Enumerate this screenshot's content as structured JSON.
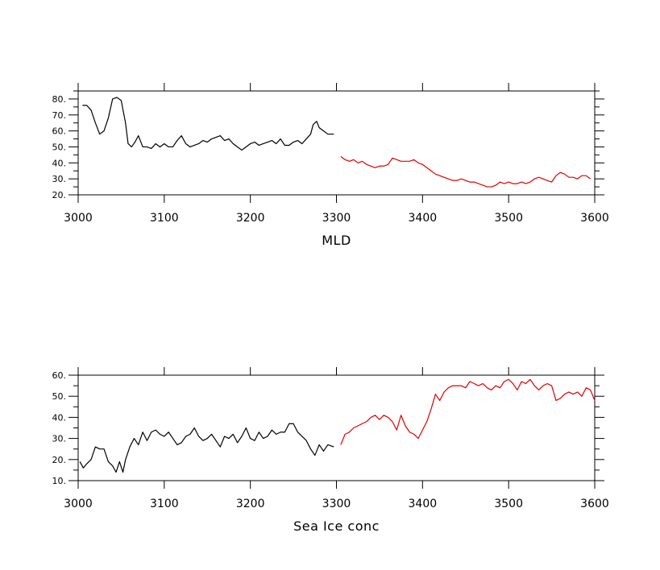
{
  "chart_data": [
    {
      "type": "line",
      "title": "",
      "xlabel": "MLD",
      "ylabel": "",
      "xlim": [
        3000,
        3600
      ],
      "ylim": [
        20,
        85
      ],
      "x_ticks": [
        3000,
        3100,
        3200,
        3300,
        3400,
        3500,
        3600
      ],
      "x_tick_labels": [
        "3000",
        "3100",
        "3200",
        "3300",
        "3400",
        "3500",
        "3600"
      ],
      "y_ticks": [
        20,
        30,
        40,
        50,
        60,
        70,
        80
      ],
      "y_tick_labels": [
        "20.",
        "30.",
        "40.",
        "50.",
        "60.",
        "70.",
        "80."
      ],
      "grid": false,
      "series": [
        {
          "color": "#000000",
          "x": [
            3005,
            3010,
            3015,
            3020,
            3025,
            3030,
            3035,
            3040,
            3045,
            3050,
            3055,
            3058,
            3062,
            3066,
            3070,
            3075,
            3080,
            3085,
            3090,
            3095,
            3100,
            3105,
            3110,
            3115,
            3120,
            3125,
            3130,
            3135,
            3140,
            3145,
            3150,
            3155,
            3160,
            3165,
            3170,
            3175,
            3180,
            3185,
            3190,
            3195,
            3200,
            3205,
            3210,
            3215,
            3220,
            3225,
            3230,
            3235,
            3240,
            3245,
            3250,
            3255,
            3260,
            3265,
            3270,
            3273,
            3277,
            3280,
            3285,
            3290,
            3297
          ],
          "y": [
            76,
            76,
            73,
            65,
            58,
            60,
            68,
            80,
            81,
            79,
            65,
            52,
            50,
            53,
            57,
            50,
            50,
            49,
            52,
            50,
            52,
            50,
            50,
            54,
            57,
            52,
            50,
            51,
            52,
            54,
            53,
            55,
            56,
            57,
            54,
            55,
            52,
            50,
            48,
            50,
            52,
            53,
            51,
            52,
            53,
            54,
            52,
            55,
            51,
            51,
            53,
            54,
            52,
            55,
            58,
            64,
            66,
            62,
            60,
            58,
            58
          ]
        },
        {
          "color": "#e00000",
          "x": [
            3305,
            3310,
            3315,
            3320,
            3325,
            3330,
            3335,
            3340,
            3345,
            3350,
            3355,
            3360,
            3365,
            3370,
            3375,
            3380,
            3385,
            3390,
            3395,
            3400,
            3405,
            3410,
            3415,
            3420,
            3425,
            3430,
            3435,
            3440,
            3445,
            3450,
            3455,
            3460,
            3465,
            3470,
            3475,
            3480,
            3485,
            3490,
            3495,
            3500,
            3505,
            3510,
            3515,
            3520,
            3525,
            3530,
            3535,
            3540,
            3545,
            3550,
            3555,
            3560,
            3565,
            3570,
            3575,
            3580,
            3585,
            3590,
            3595
          ],
          "y": [
            44,
            42,
            41,
            42,
            40,
            41,
            39,
            38,
            37,
            38,
            38,
            39,
            43,
            42,
            41,
            41,
            41,
            42,
            40,
            39,
            37,
            35,
            33,
            32,
            31,
            30,
            29,
            29,
            30,
            29,
            28,
            28,
            27,
            26,
            25,
            25,
            26,
            28,
            27,
            28,
            27,
            27,
            28,
            27,
            28,
            30,
            31,
            30,
            29,
            28,
            32,
            34,
            33,
            31,
            31,
            30,
            32,
            32,
            30
          ]
        }
      ]
    },
    {
      "type": "line",
      "title": "",
      "xlabel": "Sea Ice conc",
      "ylabel": "",
      "xlim": [
        3000,
        3600
      ],
      "ylim": [
        10,
        60
      ],
      "x_ticks": [
        3000,
        3100,
        3200,
        3300,
        3400,
        3500,
        3600
      ],
      "x_tick_labels": [
        "3000",
        "3100",
        "3200",
        "3300",
        "3400",
        "3500",
        "3600"
      ],
      "y_ticks": [
        10,
        20,
        30,
        40,
        50,
        60
      ],
      "y_tick_labels": [
        "10.",
        "20.",
        "30.",
        "40.",
        "50.",
        "60."
      ],
      "grid": false,
      "series": [
        {
          "color": "#000000",
          "x": [
            3002,
            3006,
            3010,
            3015,
            3020,
            3025,
            3030,
            3035,
            3040,
            3044,
            3048,
            3052,
            3055,
            3060,
            3065,
            3070,
            3075,
            3080,
            3085,
            3090,
            3095,
            3100,
            3105,
            3110,
            3115,
            3120,
            3125,
            3130,
            3135,
            3140,
            3145,
            3150,
            3155,
            3160,
            3165,
            3170,
            3175,
            3180,
            3185,
            3190,
            3195,
            3200,
            3205,
            3210,
            3215,
            3220,
            3225,
            3230,
            3235,
            3240,
            3245,
            3250,
            3255,
            3260,
            3265,
            3270,
            3275,
            3280,
            3285,
            3290,
            3297
          ],
          "y": [
            19,
            16,
            18,
            20,
            26,
            25,
            25,
            19,
            17,
            14,
            19,
            14,
            20,
            26,
            30,
            27,
            33,
            29,
            33,
            34,
            32,
            31,
            33,
            30,
            27,
            28,
            31,
            32,
            35,
            31,
            29,
            30,
            32,
            29,
            26,
            31,
            30,
            32,
            28,
            31,
            35,
            30,
            29,
            33,
            30,
            31,
            34,
            32,
            33,
            33,
            37,
            37,
            33,
            31,
            29,
            25,
            22,
            27,
            24,
            27,
            26
          ]
        },
        {
          "color": "#e00000",
          "x": [
            3305,
            3310,
            3315,
            3320,
            3325,
            3330,
            3335,
            3340,
            3345,
            3350,
            3355,
            3360,
            3365,
            3370,
            3375,
            3380,
            3385,
            3390,
            3395,
            3400,
            3405,
            3410,
            3415,
            3420,
            3425,
            3430,
            3435,
            3440,
            3445,
            3450,
            3455,
            3460,
            3465,
            3470,
            3475,
            3480,
            3485,
            3490,
            3495,
            3500,
            3505,
            3510,
            3515,
            3520,
            3525,
            3530,
            3535,
            3540,
            3545,
            3550,
            3555,
            3560,
            3565,
            3570,
            3575,
            3580,
            3585,
            3590,
            3595,
            3600
          ],
          "y": [
            27,
            32,
            33,
            35,
            36,
            37,
            38,
            40,
            41,
            39,
            41,
            40,
            38,
            34,
            41,
            36,
            33,
            32,
            30,
            34,
            38,
            44,
            51,
            48,
            52,
            54,
            55,
            55,
            55,
            54,
            57,
            56,
            55,
            56,
            54,
            53,
            55,
            54,
            57,
            58,
            56,
            53,
            57,
            56,
            58,
            55,
            53,
            55,
            56,
            55,
            48,
            49,
            51,
            52,
            51,
            52,
            50,
            54,
            53,
            48
          ]
        }
      ]
    }
  ]
}
